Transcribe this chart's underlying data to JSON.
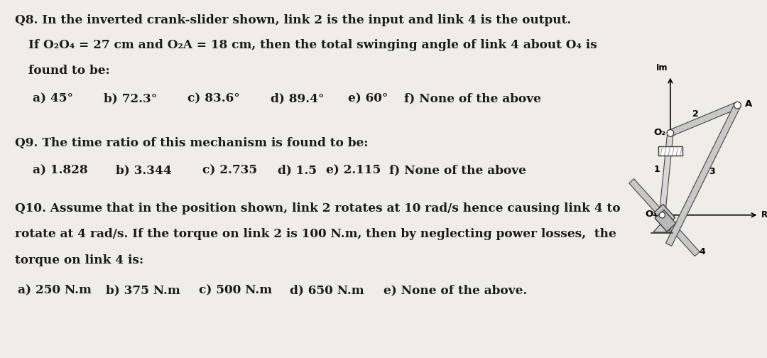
{
  "bg_color": "#f0ede8",
  "text_color": "#1a1a1a",
  "q8_line1": "Q8. In the inverted crank-slider shown, link 2 is the input and link 4 is the output.",
  "q8_line2_a": "If O",
  "q8_line2_b": "2",
  "q8_line2_c": "O",
  "q8_line2_d": "4",
  "q8_line2_e": " = 27 cm and O",
  "q8_line2_f": "2",
  "q8_line2_g": "A = 18 cm, then the total swinging angle of link 4 about O",
  "q8_line2_h": "4",
  "q8_line2_i": " is",
  "q8_line3": "found to be:",
  "q8_ans_a": "a) 45°",
  "q8_ans_b": "b) 72.3°",
  "q8_ans_c": "c) 83.6°",
  "q8_ans_d": "d) 89.4°",
  "q8_ans_e": "e) 60°",
  "q8_ans_f": "f) None of the above",
  "q9_line1": "Q9. The time ratio of this mechanism is found to be:",
  "q9_ans_a": "a) 1.828",
  "q9_ans_b": "b) 3.344",
  "q9_ans_c": "c) 2.735",
  "q9_ans_d": "d) 1.5",
  "q9_ans_e": "e) 2.115",
  "q9_ans_f": "f) None of the above",
  "q10_line1": "Q10. Assume that in the position shown, link 2 rotates at 10 rad/s hence causing link 4 to",
  "q10_line2": "rotate at 4 rad/s. If the torque on link 2 is 100 N.m, then by neglecting power losses,  the",
  "q10_line3": "torque on link 4 is:",
  "q10_ans_a": "a) 250 N.m",
  "q10_ans_b": "b) 375 N.m",
  "q10_ans_c": "c) 500 N.m",
  "q10_ans_d": "d) 650 N.m",
  "q10_ans_e": "e) None of the above.",
  "link_gray": "#aaaaaa",
  "link_dark": "#444444",
  "ground_gray": "#cccccc",
  "slider_gray": "#bbbbbb",
  "white": "#ffffff",
  "diag_bg": "#ffffff"
}
